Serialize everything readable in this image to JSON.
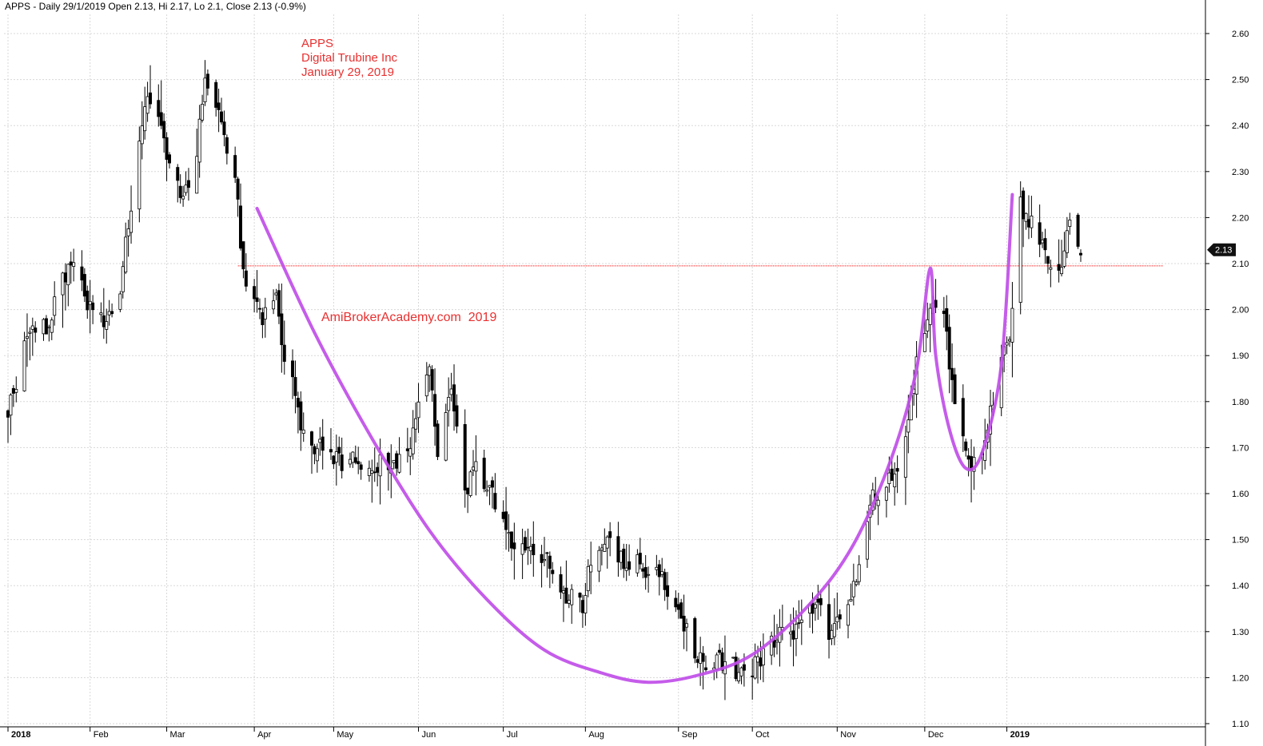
{
  "header": {
    "text": "APPS - Daily 29/1/2019 Open 2.13, Hi 2.17, Lo 2.1, Close 2.13 (-0.9%)"
  },
  "annotation": {
    "line1": "APPS",
    "line2": "Digital Trubine Inc",
    "line3": "January 29, 2019"
  },
  "watermark": "AmiBrokerAcademy.com  2019",
  "colors": {
    "annotation": "#e83030",
    "pattern_curve": "#c04ee8",
    "reference_line": "#ff3b3b",
    "candle": "#000000",
    "grid": "#d8d8d8",
    "price_tag_bg": "#111111"
  },
  "chart_data": {
    "type": "candlestick",
    "ticker": "APPS",
    "interval": "Daily",
    "x_start": "2018-01-02",
    "x_end": "2019-01-29",
    "ylim": [
      1.1,
      2.62
    ],
    "y_ticks": [
      "1.10",
      "1.20",
      "1.30",
      "1.40",
      "1.50",
      "1.60",
      "1.70",
      "1.80",
      "1.90",
      "2.00",
      "2.10",
      "2.20",
      "2.30",
      "2.40",
      "2.50",
      "2.60"
    ],
    "x_ticks": [
      {
        "date": "2018-01-02",
        "label": "2018",
        "bold": true
      },
      {
        "date": "2018-02-01",
        "label": "Feb",
        "bold": false
      },
      {
        "date": "2018-03-01",
        "label": "Mar",
        "bold": false
      },
      {
        "date": "2018-04-02",
        "label": "Apr",
        "bold": false
      },
      {
        "date": "2018-05-01",
        "label": "May",
        "bold": false
      },
      {
        "date": "2018-06-01",
        "label": "Jun",
        "bold": false
      },
      {
        "date": "2018-07-02",
        "label": "Jul",
        "bold": false
      },
      {
        "date": "2018-08-01",
        "label": "Aug",
        "bold": false
      },
      {
        "date": "2018-09-04",
        "label": "Sep",
        "bold": false
      },
      {
        "date": "2018-10-01",
        "label": "Oct",
        "bold": false
      },
      {
        "date": "2018-11-01",
        "label": "Nov",
        "bold": false
      },
      {
        "date": "2018-12-03",
        "label": "Dec",
        "bold": false
      },
      {
        "date": "2019-01-02",
        "label": "2019",
        "bold": true
      }
    ],
    "grid": true,
    "last_price": {
      "value": 2.13,
      "label": "2.13"
    },
    "reference_line": {
      "value": 2.095,
      "from": "2018-03-27",
      "to": "2019-02-28"
    },
    "close_path": [
      [
        "2018-01-02",
        1.78
      ],
      [
        "2018-01-10",
        1.95
      ],
      [
        "2018-01-17",
        1.97
      ],
      [
        "2018-01-24",
        2.1
      ],
      [
        "2018-01-31",
        2.02
      ],
      [
        "2018-02-07",
        1.98
      ],
      [
        "2018-02-12",
        2.05
      ],
      [
        "2018-02-16",
        2.22
      ],
      [
        "2018-02-21",
        2.45
      ],
      [
        "2018-02-27",
        2.4
      ],
      [
        "2018-03-02",
        2.3
      ],
      [
        "2018-03-07",
        2.25
      ],
      [
        "2018-03-12",
        2.35
      ],
      [
        "2018-03-15",
        2.5
      ],
      [
        "2018-03-21",
        2.4
      ],
      [
        "2018-03-26",
        2.3
      ],
      [
        "2018-03-29",
        2.08
      ],
      [
        "2018-04-05",
        1.98
      ],
      [
        "2018-04-10",
        2.02
      ],
      [
        "2018-04-13",
        1.9
      ],
      [
        "2018-04-19",
        1.76
      ],
      [
        "2018-04-25",
        1.7
      ],
      [
        "2018-05-01",
        1.67
      ],
      [
        "2018-05-09",
        1.68
      ],
      [
        "2018-05-16",
        1.67
      ],
      [
        "2018-05-22",
        1.66
      ],
      [
        "2018-05-29",
        1.72
      ],
      [
        "2018-06-01",
        1.78
      ],
      [
        "2018-06-05",
        1.86
      ],
      [
        "2018-06-08",
        1.7
      ],
      [
        "2018-06-13",
        1.82
      ],
      [
        "2018-06-18",
        1.6
      ],
      [
        "2018-06-22",
        1.65
      ],
      [
        "2018-06-28",
        1.6
      ],
      [
        "2018-07-05",
        1.5
      ],
      [
        "2018-07-12",
        1.47
      ],
      [
        "2018-07-18",
        1.45
      ],
      [
        "2018-07-24",
        1.38
      ],
      [
        "2018-07-31",
        1.36
      ],
      [
        "2018-08-03",
        1.45
      ],
      [
        "2018-08-09",
        1.52
      ],
      [
        "2018-08-15",
        1.44
      ],
      [
        "2018-08-20",
        1.46
      ],
      [
        "2018-08-24",
        1.41
      ],
      [
        "2018-08-29",
        1.42
      ],
      [
        "2018-09-04",
        1.35
      ],
      [
        "2018-09-10",
        1.26
      ],
      [
        "2018-09-14",
        1.22
      ],
      [
        "2018-09-19",
        1.24
      ],
      [
        "2018-09-25",
        1.22
      ],
      [
        "2018-10-01",
        1.22
      ],
      [
        "2018-10-05",
        1.25
      ],
      [
        "2018-10-10",
        1.3
      ],
      [
        "2018-10-16",
        1.28
      ],
      [
        "2018-10-19",
        1.33
      ],
      [
        "2018-10-24",
        1.37
      ],
      [
        "2018-10-29",
        1.29
      ],
      [
        "2018-11-01",
        1.32
      ],
      [
        "2018-11-07",
        1.4
      ],
      [
        "2018-11-13",
        1.58
      ],
      [
        "2018-11-19",
        1.62
      ],
      [
        "2018-11-26",
        1.7
      ],
      [
        "2018-11-30",
        1.9
      ],
      [
        "2018-12-05",
        2.02
      ],
      [
        "2018-12-10",
        1.98
      ],
      [
        "2018-12-14",
        1.78
      ],
      [
        "2018-12-19",
        1.66
      ],
      [
        "2018-12-24",
        1.67
      ],
      [
        "2018-12-28",
        1.8
      ],
      [
        "2019-01-03",
        1.95
      ],
      [
        "2019-01-07",
        2.23
      ],
      [
        "2019-01-11",
        2.18
      ],
      [
        "2019-01-16",
        2.12
      ],
      [
        "2019-01-22",
        2.1
      ],
      [
        "2019-01-25",
        2.17
      ],
      [
        "2019-01-29",
        2.13
      ]
    ],
    "pattern_curve": [
      [
        "2018-04-03",
        2.22
      ],
      [
        "2018-04-24",
        1.95
      ],
      [
        "2018-05-15",
        1.72
      ],
      [
        "2018-06-05",
        1.52
      ],
      [
        "2018-06-26",
        1.37
      ],
      [
        "2018-07-17",
        1.26
      ],
      [
        "2018-08-07",
        1.21
      ],
      [
        "2018-08-24",
        1.19
      ],
      [
        "2018-09-11",
        1.205
      ],
      [
        "2018-10-01",
        1.25
      ],
      [
        "2018-10-22",
        1.36
      ],
      [
        "2018-11-07",
        1.49
      ],
      [
        "2018-11-21",
        1.68
      ],
      [
        "2018-11-30",
        1.87
      ],
      [
        "2018-12-05",
        2.09
      ],
      [
        "2018-12-07",
        1.9
      ],
      [
        "2018-12-12",
        1.74
      ],
      [
        "2018-12-18",
        1.655
      ],
      [
        "2018-12-24",
        1.69
      ],
      [
        "2018-12-31",
        1.88
      ],
      [
        "2019-01-04",
        2.25
      ]
    ]
  }
}
